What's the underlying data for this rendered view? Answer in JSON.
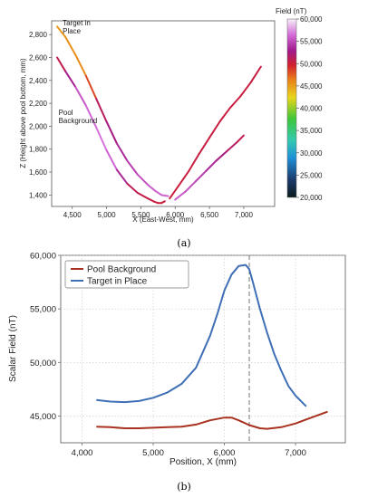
{
  "chart_data": [
    {
      "type": "line",
      "panel_label": "(a)",
      "xlabel": "X (East-West, mm)",
      "ylabel": "Z (Height above pool bottom, mm)",
      "xlim": [
        4200,
        7450
      ],
      "ylim": [
        1300,
        2920
      ],
      "x_ticks": [
        4500,
        5000,
        5500,
        6000,
        6500,
        7000
      ],
      "x_tick_labels": [
        "4,500",
        "5,000",
        "5,500",
        "6,000",
        "6,500",
        "7,000"
      ],
      "y_ticks": [
        1400,
        1600,
        1800,
        2000,
        2200,
        2400,
        2600,
        2800
      ],
      "y_tick_labels": [
        "1,400",
        "1,600",
        "1,800",
        "2,000",
        "2,200",
        "2,400",
        "2,600",
        "2,800"
      ],
      "annotations": [
        {
          "lines": [
            "Target in",
            "Place"
          ],
          "x": 4360,
          "y": 2880
        },
        {
          "lines": [
            "Pool",
            "Background"
          ],
          "x": 4300,
          "y": 2100
        }
      ],
      "colorbar": {
        "title": "Field (nT)",
        "ticks": [
          20000,
          25000,
          30000,
          35000,
          40000,
          45000,
          50000,
          55000,
          60000
        ],
        "tick_labels": [
          "20,000",
          "25,000",
          "30,000",
          "35,000",
          "40,000",
          "45,000",
          "50,000",
          "55,000",
          "60,000"
        ]
      },
      "series": [
        {
          "x": [
            4280,
            4400,
            4550,
            4700,
            4850,
            5000,
            5150,
            5300,
            5450,
            5600,
            5700,
            5800,
            5900
          ],
          "y": [
            2870,
            2780,
            2620,
            2440,
            2240,
            2040,
            1850,
            1700,
            1580,
            1490,
            1440,
            1400,
            1390
          ],
          "field_nT": [
            45000,
            45500,
            45700,
            46000,
            50500,
            52000,
            53000,
            54000,
            55000,
            55500,
            55800,
            56000,
            56200
          ]
        },
        {
          "x": [
            6000,
            6150,
            6300,
            6450,
            6600,
            6750,
            6900,
            7000
          ],
          "y": [
            1360,
            1430,
            1520,
            1610,
            1700,
            1780,
            1860,
            1920
          ],
          "field_nT": [
            56000,
            55500,
            55000,
            54000,
            53000,
            52000,
            51000,
            50500
          ]
        },
        {
          "x": [
            4280,
            4400,
            4550,
            4700,
            4850,
            5000,
            5150,
            5300,
            5450,
            5600,
            5700,
            5750,
            5800,
            5850
          ],
          "y": [
            2600,
            2480,
            2340,
            2180,
            1990,
            1790,
            1620,
            1500,
            1420,
            1370,
            1340,
            1330,
            1330,
            1345
          ],
          "field_nT": [
            50500,
            51000,
            55000,
            56000,
            56500,
            56800,
            55500,
            51500,
            50500,
            50500,
            50300,
            50200,
            50200,
            50200
          ]
        },
        {
          "x": [
            5920,
            6050,
            6200,
            6350,
            6500,
            6650,
            6800,
            6950,
            7100,
            7250
          ],
          "y": [
            1370,
            1480,
            1610,
            1760,
            1900,
            2040,
            2160,
            2260,
            2380,
            2520
          ],
          "field_nT": [
            50200,
            50200,
            50300,
            50300,
            50300,
            50300,
            50300,
            50300,
            50300,
            50300
          ]
        }
      ]
    },
    {
      "type": "line",
      "panel_label": "(b)",
      "xlabel": "Position, X (mm)",
      "ylabel": "Scalar Field (nT)",
      "xlim": [
        3700,
        7700
      ],
      "ylim": [
        42500,
        60000
      ],
      "grid": true,
      "legend": "top-left",
      "x_ticks": [
        4000,
        5000,
        6000,
        7000
      ],
      "x_tick_labels": [
        "4,000",
        "5,000",
        "6,000",
        "7,000"
      ],
      "y_ticks": [
        45000,
        50000,
        55000,
        60000
      ],
      "y_tick_labels": [
        "45,000",
        "50,000",
        "55,000",
        "60,000"
      ],
      "vline_x": 6350,
      "series": [
        {
          "name": "Pool Background",
          "color": "#a8321f",
          "x": [
            4200,
            4400,
            4600,
            4800,
            5000,
            5200,
            5400,
            5600,
            5800,
            6000,
            6100,
            6200,
            6350,
            6500,
            6600,
            6800,
            7000,
            7200,
            7450
          ],
          "y": [
            44000,
            43950,
            43850,
            43850,
            43900,
            43950,
            44000,
            44200,
            44600,
            44850,
            44850,
            44600,
            44150,
            43850,
            43800,
            43950,
            44300,
            44800,
            45400
          ]
        },
        {
          "name": "Target in Place",
          "color": "#3f6fb5",
          "x": [
            4200,
            4400,
            4600,
            4800,
            5000,
            5200,
            5400,
            5600,
            5800,
            5900,
            6000,
            6100,
            6200,
            6300,
            6350,
            6400,
            6500,
            6600,
            6700,
            6800,
            6900,
            7000,
            7150
          ],
          "y": [
            46500,
            46350,
            46300,
            46400,
            46700,
            47200,
            48000,
            49500,
            52500,
            54500,
            56700,
            58200,
            59000,
            59100,
            58700,
            57500,
            55000,
            52800,
            50800,
            49200,
            47800,
            46900,
            45900
          ]
        }
      ]
    }
  ]
}
